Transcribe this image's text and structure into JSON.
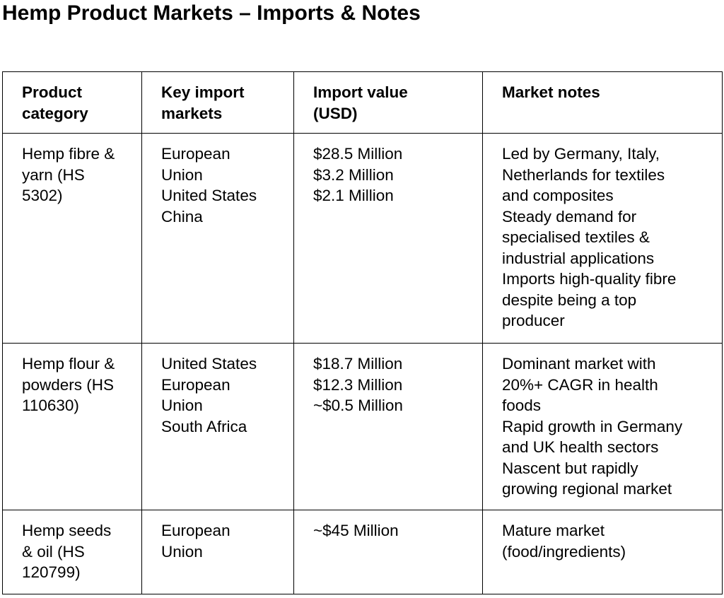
{
  "title": "Hemp Product Markets – Imports & Notes",
  "headers": [
    [
      "Product",
      "category"
    ],
    [
      "Key import",
      "markets"
    ],
    [
      "Import value",
      "(USD)"
    ],
    [
      "Market notes"
    ]
  ],
  "rows": [
    [
      [
        "Hemp fibre &",
        "yarn (HS",
        "5302)"
      ],
      [
        "European",
        "Union",
        "United States",
        "China"
      ],
      [
        "$28.5 Million",
        "$3.2 Million",
        "$2.1 Million"
      ],
      [
        "Led by Germany, Italy,",
        "Netherlands for textiles",
        "and composites",
        "Steady demand for",
        "specialised textiles &",
        "industrial applications",
        "Imports high-quality fibre",
        "despite being a top",
        "producer"
      ]
    ],
    [
      [
        "Hemp flour &",
        "powders (HS",
        "110630)"
      ],
      [
        "United States",
        "European",
        "Union",
        "South Africa"
      ],
      [
        "$18.7 Million",
        "$12.3 Million",
        "~$0.5 Million"
      ],
      [
        "Dominant market with",
        "20%+ CAGR in health",
        "foods",
        "Rapid growth in Germany",
        "and UK health sectors",
        "Nascent but rapidly",
        "growing regional market"
      ]
    ],
    [
      [
        "Hemp seeds",
        "& oil (HS",
        "120799)"
      ],
      [
        "European",
        "Union"
      ],
      [
        "~$45 Million"
      ],
      [
        "Mature market",
        "(food/ingredients)"
      ]
    ]
  ]
}
